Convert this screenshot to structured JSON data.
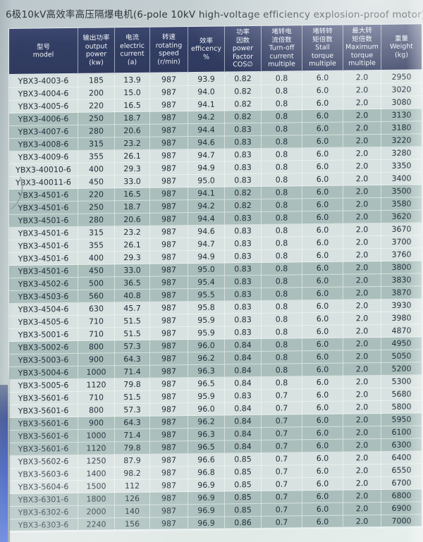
{
  "page": {
    "title": "6极10kV高效率高压隔爆电机(6-pole 10kV high-voltage efficiency explosion-proof motor)"
  },
  "colors": {
    "header_bg": "#333e64",
    "header_text": "#edf1f7",
    "row_light": "#d8e2e0",
    "row_dark": "#aabfbc",
    "body_text": "#222d3b",
    "binding_blue": "#2c50c4"
  },
  "table": {
    "columns": [
      {
        "id": "model",
        "lines": [
          "型号",
          "model"
        ]
      },
      {
        "id": "output-power",
        "lines": [
          "输出功率",
          "output",
          "power",
          "(kw)"
        ]
      },
      {
        "id": "current",
        "lines": [
          "电流",
          "electric",
          "current",
          "(a)"
        ]
      },
      {
        "id": "speed",
        "lines": [
          "转速",
          "rotating",
          "speed",
          "(r/min)"
        ]
      },
      {
        "id": "efficiency",
        "lines": [
          "效率",
          "efficency",
          "%"
        ]
      },
      {
        "id": "power-factor",
        "lines": [
          "功率",
          "因数",
          "power",
          "Factor",
          "COS∅"
        ]
      },
      {
        "id": "current-multiple",
        "lines": [
          "堵转电",
          "流倍数",
          "Turn-off",
          "current",
          "multiple"
        ]
      },
      {
        "id": "stall-torque",
        "lines": [
          "堵转转",
          "矩倍数",
          "Stall",
          "torque",
          "multiple"
        ]
      },
      {
        "id": "max-torque",
        "lines": [
          "最大转",
          "矩倍数",
          "Maximum",
          "torque",
          "multiple"
        ]
      },
      {
        "id": "weight",
        "lines": [
          "重量",
          "Weight",
          "(kg)"
        ]
      }
    ],
    "rows": [
      [
        "YBX3-4003-6",
        "185",
        "13.9",
        "987",
        "93.9",
        "0.82",
        "0.8",
        "6.0",
        "2.0",
        "2950"
      ],
      [
        "YBX3-4004-6",
        "200",
        "15.0",
        "987",
        "94.0",
        "0.82",
        "0.8",
        "6.0",
        "2.0",
        "3020"
      ],
      [
        "YBX3-4005-6",
        "220",
        "16.5",
        "987",
        "94.1",
        "0.82",
        "0.8",
        "6.0",
        "2.0",
        "3080"
      ],
      [
        "YBX3-4006-6",
        "250",
        "18.7",
        "987",
        "94.2",
        "0.82",
        "0.8",
        "6.0",
        "2.0",
        "3130"
      ],
      [
        "YBX3-4007-6",
        "280",
        "20.6",
        "987",
        "94.4",
        "0.83",
        "0.8",
        "6.0",
        "2.0",
        "3180"
      ],
      [
        "YBX3-4008-6",
        "315",
        "23.2",
        "987",
        "94.6",
        "0.83",
        "0.8",
        "6.0",
        "2.0",
        "3220"
      ],
      [
        "YBX3-4009-6",
        "355",
        "26.1",
        "987",
        "94.7",
        "0.83",
        "0.8",
        "6.0",
        "2.0",
        "3280"
      ],
      [
        "YBX3-40010-6",
        "400",
        "29.3",
        "987",
        "94.9",
        "0.83",
        "0.8",
        "6.0",
        "2.0",
        "3350"
      ],
      [
        "YBX3-40011-6",
        "450",
        "33.0",
        "987",
        "95.0",
        "0.83",
        "0.8",
        "6.0",
        "2.0",
        "3400"
      ],
      [
        "YBX3-4501-6",
        "220",
        "16.5",
        "987",
        "94.1",
        "0.82",
        "0.8",
        "6.0",
        "2.0",
        "3500"
      ],
      [
        "YBX3-4501-6",
        "250",
        "18.7",
        "987",
        "94.2",
        "0.82",
        "0.8",
        "6.0",
        "2.0",
        "3580"
      ],
      [
        "YBX3-4501-6",
        "280",
        "20.6",
        "987",
        "94.4",
        "0.83",
        "0.8",
        "6.0",
        "2.0",
        "3620"
      ],
      [
        "YBX3-4501-6",
        "315",
        "23.2",
        "987",
        "94.6",
        "0.83",
        "0.8",
        "6.0",
        "2.0",
        "3670"
      ],
      [
        "YBX3-4501-6",
        "355",
        "26.1",
        "987",
        "94.7",
        "0.83",
        "0.8",
        "6.0",
        "2.0",
        "3700"
      ],
      [
        "YBX3-4501-6",
        "400",
        "29.3",
        "987",
        "94.9",
        "0.83",
        "0.8",
        "6.0",
        "2.0",
        "3760"
      ],
      [
        "YBX3-4501-6",
        "450",
        "33.0",
        "987",
        "95.0",
        "0.83",
        "0.8",
        "6.0",
        "2.0",
        "3800"
      ],
      [
        "YBX3-4502-6",
        "500",
        "36.5",
        "987",
        "95.4",
        "0.83",
        "0.8",
        "6.0",
        "2.0",
        "3830"
      ],
      [
        "YBX3-4503-6",
        "560",
        "40.8",
        "987",
        "95.5",
        "0.83",
        "0.8",
        "6.0",
        "2.0",
        "3870"
      ],
      [
        "YBX3-4504-6",
        "630",
        "45.7",
        "987",
        "95.8",
        "0.83",
        "0.8",
        "6.0",
        "2.0",
        "3930"
      ],
      [
        "YBX3-4505-6",
        "710",
        "51.5",
        "987",
        "95.9",
        "0.83",
        "0.8",
        "6.0",
        "2.0",
        "3980"
      ],
      [
        "YBX3-5001-6",
        "710",
        "51.5",
        "987",
        "95.9",
        "0.83",
        "0.8",
        "6.0",
        "2.0",
        "4870"
      ],
      [
        "YBX3-5002-6",
        "800",
        "57.3",
        "987",
        "96.0",
        "0.84",
        "0.8",
        "6.0",
        "2.0",
        "4950"
      ],
      [
        "YBX3-5003-6",
        "900",
        "64.3",
        "987",
        "96.2",
        "0.84",
        "0.8",
        "6.0",
        "2.0",
        "5050"
      ],
      [
        "YBX3-5004-6",
        "1000",
        "71.4",
        "987",
        "96.3",
        "0.84",
        "0.8",
        "6.0",
        "2.0",
        "5200"
      ],
      [
        "YBX3-5005-6",
        "1120",
        "79.8",
        "987",
        "96.5",
        "0.84",
        "0.8",
        "6.0",
        "2.0",
        "5300"
      ],
      [
        "YBX3-5601-6",
        "710",
        "51.5",
        "987",
        "95.9",
        "0.83",
        "0.7",
        "6.0",
        "2.0",
        "5680"
      ],
      [
        "YBX3-5601-6",
        "800",
        "57.3",
        "987",
        "96.0",
        "0.84",
        "0.7",
        "6.0",
        "2.0",
        "5800"
      ],
      [
        "YBX3-5601-6",
        "900",
        "64.3",
        "987",
        "96.2",
        "0.84",
        "0.7",
        "6.0",
        "2.0",
        "5950"
      ],
      [
        "YBX3-5601-6",
        "1000",
        "71.4",
        "987",
        "96.3",
        "0.84",
        "0.7",
        "6.0",
        "2.0",
        "6100"
      ],
      [
        "YBX3-5601-6",
        "1120",
        "79.8",
        "987",
        "96.5",
        "0.84",
        "0.7",
        "6.0",
        "2.0",
        "6300"
      ],
      [
        "YBX3-5602-6",
        "1250",
        "87.9",
        "987",
        "96.6",
        "0.85",
        "0.7",
        "6.0",
        "2.0",
        "6400"
      ],
      [
        "YBX3-5603-6",
        "1400",
        "98.2",
        "987",
        "96.8",
        "0.85",
        "0.7",
        "6.0",
        "2.0",
        "6550"
      ],
      [
        "YBX3-5604-6",
        "1500",
        "112",
        "987",
        "96.9",
        "0.85",
        "0.7",
        "6.0",
        "2.0",
        "6700"
      ],
      [
        "YBX3-6301-6",
        "1800",
        "126",
        "987",
        "96.9",
        "0.85",
        "0.7",
        "6.0",
        "2.0",
        "6800"
      ],
      [
        "YBX3-6302-6",
        "2000",
        "140",
        "987",
        "96.9",
        "0.85",
        "0.7",
        "6.0",
        "2.0",
        "6900"
      ],
      [
        "YBX3-6303-6",
        "2240",
        "156",
        "987",
        "96.9",
        "0.86",
        "0.7",
        "6.0",
        "2.0",
        "7000"
      ]
    ]
  }
}
